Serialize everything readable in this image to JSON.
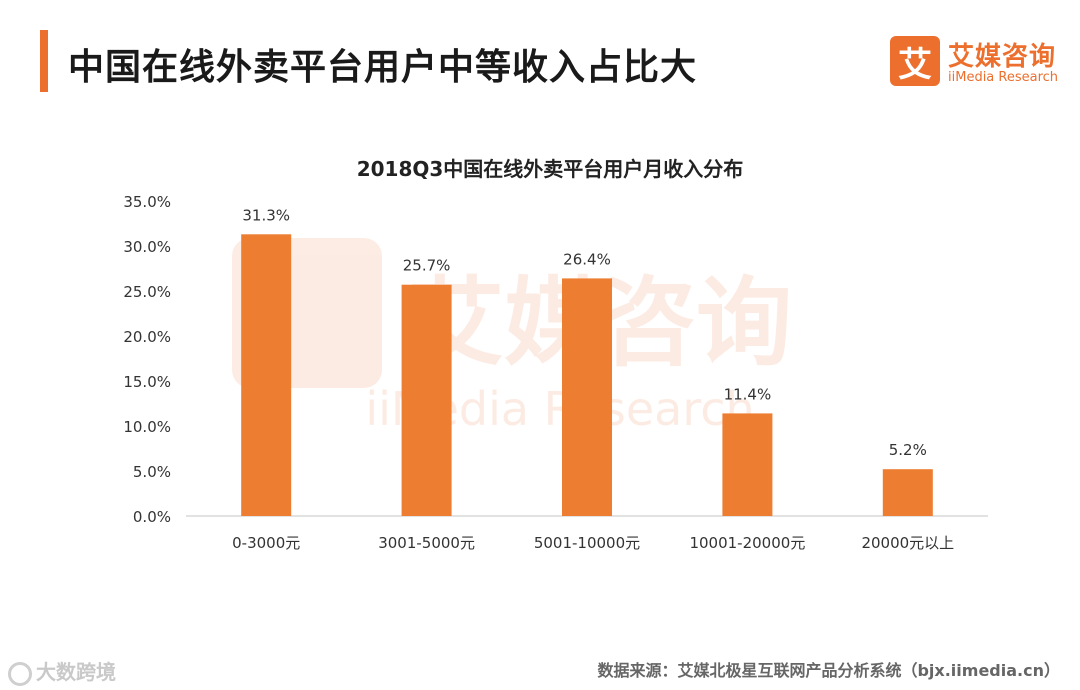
{
  "header": {
    "title": "中国在线外卖平台用户中等收入占比大"
  },
  "logo": {
    "mark": "艾",
    "name_cn": "艾媒咨询",
    "name_en": "iiMedia Research"
  },
  "watermark": {
    "cn": "艾媒咨询",
    "en": "iiMedia Research"
  },
  "footer": {
    "left_brand": "大数跨境",
    "source": "数据来源：艾媒北极星互联网产品分析系统（bjx.iimedia.cn）"
  },
  "colors": {
    "accent": "#ec6f2d",
    "bar": "#ed7d31",
    "axis": "#d9d9d9"
  },
  "chart_data": {
    "type": "bar",
    "title": "2018Q3中国在线外卖平台用户月收入分布",
    "categories": [
      "0-3000元",
      "3001-5000元",
      "5001-10000元",
      "10001-20000元",
      "20000元以上"
    ],
    "values": [
      31.3,
      25.7,
      26.4,
      11.4,
      5.2
    ],
    "value_labels": [
      "31.3%",
      "25.7%",
      "26.4%",
      "11.4%",
      "5.2%"
    ],
    "y_ticks": [
      "0.0%",
      "5.0%",
      "10.0%",
      "15.0%",
      "20.0%",
      "25.0%",
      "30.0%",
      "35.0%"
    ],
    "ylim": [
      0,
      35
    ],
    "grid": false,
    "legend": "none",
    "xlabel": "",
    "ylabel": ""
  }
}
